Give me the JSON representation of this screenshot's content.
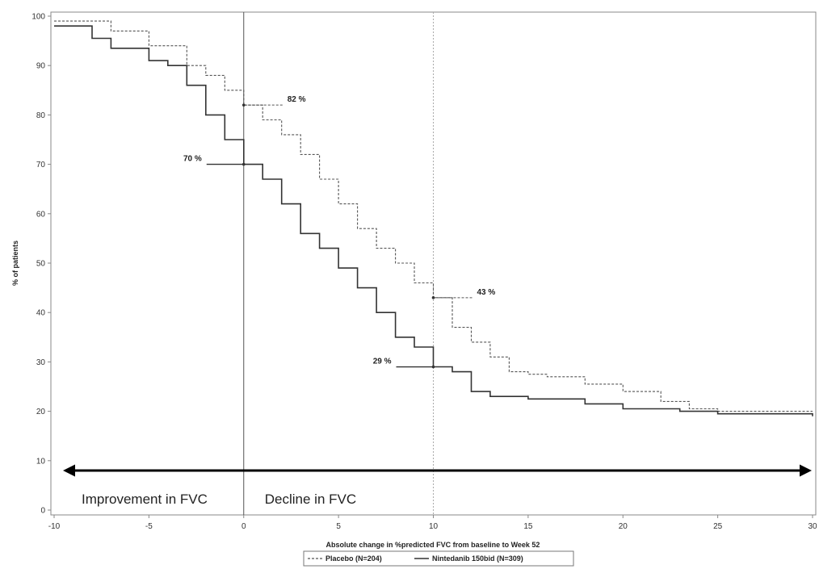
{
  "chart_data": {
    "type": "line",
    "title": "",
    "xlabel": "Absolute change in %predicted FVC from baseline to Week 52",
    "ylabel": "% of patients",
    "xlim": [
      -10,
      30
    ],
    "ylim": [
      0,
      100
    ],
    "x_ticks": [
      "-10",
      "-5",
      "0",
      "5",
      "10",
      "15",
      "20",
      "25",
      "30"
    ],
    "y_ticks": [
      "0",
      "10",
      "20",
      "30",
      "40",
      "50",
      "60",
      "70",
      "80",
      "90",
      "100"
    ],
    "grid": false,
    "legend_position": "bottom",
    "series": [
      {
        "name": "Placebo (N=204)",
        "style": "dashed",
        "color": "#555555",
        "points": [
          [
            -10,
            99
          ],
          [
            -8.5,
            99
          ],
          [
            -7,
            97
          ],
          [
            -5,
            94
          ],
          [
            -3,
            90
          ],
          [
            -2,
            88
          ],
          [
            -1,
            85
          ],
          [
            0,
            82
          ],
          [
            1,
            79
          ],
          [
            2,
            76
          ],
          [
            3,
            72
          ],
          [
            4,
            67
          ],
          [
            5,
            62
          ],
          [
            6,
            57
          ],
          [
            7,
            53
          ],
          [
            8,
            50
          ],
          [
            9,
            46
          ],
          [
            10,
            43
          ],
          [
            11,
            37
          ],
          [
            12,
            34
          ],
          [
            13,
            31
          ],
          [
            14,
            28
          ],
          [
            15,
            27.5
          ],
          [
            16,
            27
          ],
          [
            18,
            25.5
          ],
          [
            20,
            24
          ],
          [
            22,
            22
          ],
          [
            23.5,
            20.5
          ],
          [
            25,
            20
          ],
          [
            30,
            20
          ]
        ]
      },
      {
        "name": "Nintedanib 150bid (N=309)",
        "style": "solid",
        "color": "#333333",
        "points": [
          [
            -10,
            98
          ],
          [
            -8,
            95.5
          ],
          [
            -7,
            93.5
          ],
          [
            -5,
            91
          ],
          [
            -4,
            90
          ],
          [
            -3,
            86
          ],
          [
            -2,
            80
          ],
          [
            -1,
            75
          ],
          [
            0,
            70
          ],
          [
            1,
            67
          ],
          [
            2,
            62
          ],
          [
            3,
            56
          ],
          [
            4,
            53
          ],
          [
            5,
            49
          ],
          [
            6,
            45
          ],
          [
            7,
            40
          ],
          [
            8,
            35
          ],
          [
            9,
            33
          ],
          [
            10,
            29
          ],
          [
            11,
            28
          ],
          [
            12,
            24
          ],
          [
            13,
            23
          ],
          [
            15,
            22.5
          ],
          [
            18,
            21.5
          ],
          [
            20,
            20.5
          ],
          [
            23,
            20
          ],
          [
            25,
            19.5
          ],
          [
            30,
            19
          ]
        ]
      }
    ],
    "reference_lines": [
      {
        "x": 0,
        "style": "solid"
      },
      {
        "x": 10,
        "style": "dotted"
      }
    ],
    "annotations": [
      {
        "label": "82 %",
        "x": 0,
        "y": 82,
        "series": "Placebo (N=204)",
        "side": "right"
      },
      {
        "label": "70 %",
        "x": 0,
        "y": 70,
        "series": "Nintedanib 150bid (N=309)",
        "side": "left"
      },
      {
        "label": "43 %",
        "x": 10,
        "y": 43,
        "series": "Placebo (N=204)",
        "side": "right"
      },
      {
        "label": "29 %",
        "x": 10,
        "y": 29,
        "series": "Nintedanib 150bid (N=309)",
        "side": "left"
      }
    ],
    "arrow": {
      "y": 8,
      "x_from": -10,
      "x_to": 30
    },
    "regions": [
      {
        "text": "Improvement in FVC",
        "x": -10,
        "y": 1
      },
      {
        "text": "Decline in FVC",
        "x": 0,
        "y": 1
      }
    ]
  }
}
